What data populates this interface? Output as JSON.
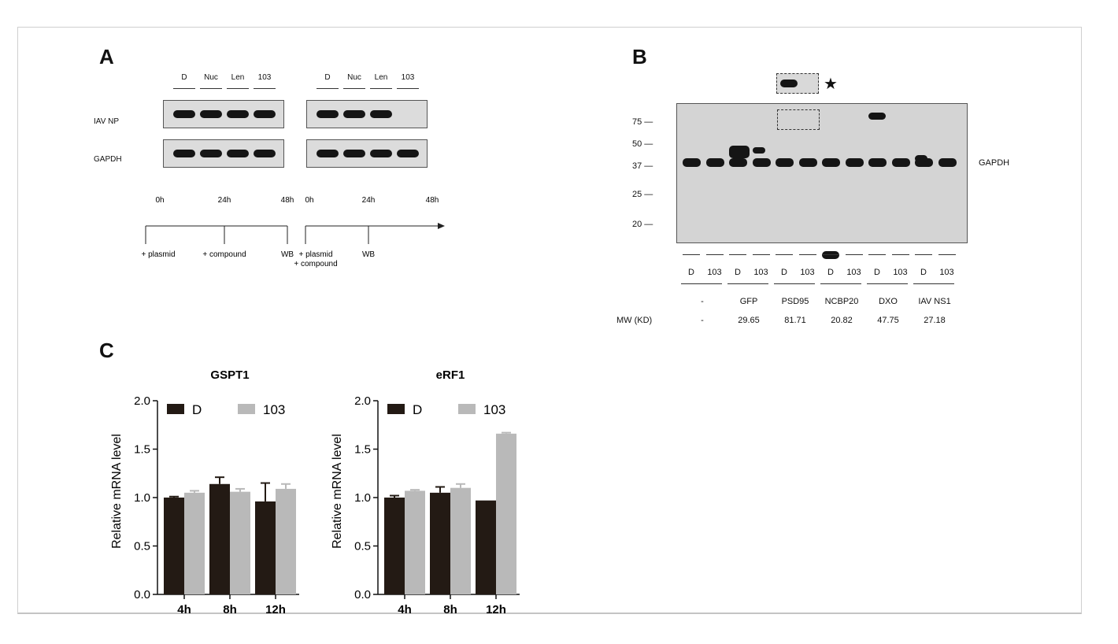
{
  "panels": {
    "a": "A",
    "b": "B",
    "c": "C"
  },
  "panel_a": {
    "lanes": [
      "D",
      "Nuc",
      "Len",
      "103"
    ],
    "rows": [
      "IAV NP",
      "GAPDH"
    ],
    "times": [
      "0h",
      "24h",
      "48h"
    ],
    "left_steps": [
      "+ plasmid",
      "+ compound",
      "WB"
    ],
    "right_steps": [
      "+ plasmid\n+ compound",
      "WB"
    ]
  },
  "panel_b": {
    "star": "★",
    "mw_markers": [
      "75",
      "50",
      "37",
      "25",
      "20"
    ],
    "gapdh": "GAPDH",
    "lanes": [
      "D",
      "103",
      "D",
      "103",
      "D",
      "103",
      "D",
      "103",
      "D",
      "103",
      "D",
      "103"
    ],
    "groups": [
      "-",
      "GFP",
      "PSD95",
      "NCBP20",
      "DXO",
      "IAV NS1"
    ],
    "mw_label": "MW (KD)",
    "mw_values": [
      "-",
      "29.65",
      "81.71",
      "20.82",
      "47.75",
      "27.18"
    ]
  },
  "chart_data": [
    {
      "type": "bar",
      "title": "GSPT1",
      "ylabel": "Relative mRNA level",
      "categories": [
        "4h",
        "8h",
        "12h"
      ],
      "ylim": [
        0,
        2.0
      ],
      "yticks": [
        "0.0",
        "0.5",
        "1.0",
        "1.5",
        "2.0"
      ],
      "series": [
        {
          "name": "D",
          "values": [
            1.0,
            1.14,
            0.96
          ],
          "errors": [
            0.01,
            0.07,
            0.19
          ],
          "color": "#231a14"
        },
        {
          "name": "103",
          "values": [
            1.05,
            1.06,
            1.09
          ],
          "errors": [
            0.02,
            0.03,
            0.05
          ],
          "color": "#b9b9b9"
        }
      ],
      "legend": "top-left"
    },
    {
      "type": "bar",
      "title": "eRF1",
      "ylabel": "Relative mRNA level",
      "categories": [
        "4h",
        "8h",
        "12h"
      ],
      "ylim": [
        0,
        2.0
      ],
      "yticks": [
        "0.0",
        "0.5",
        "1.0",
        "1.5",
        "2.0"
      ],
      "series": [
        {
          "name": "D",
          "values": [
            1.0,
            1.05,
            0.97
          ],
          "errors": [
            0.02,
            0.06,
            0.0
          ],
          "color": "#231a14"
        },
        {
          "name": "103",
          "values": [
            1.07,
            1.1,
            1.66
          ],
          "errors": [
            0.01,
            0.04,
            0.01
          ],
          "color": "#b9b9b9"
        }
      ],
      "legend": "top-left"
    }
  ]
}
